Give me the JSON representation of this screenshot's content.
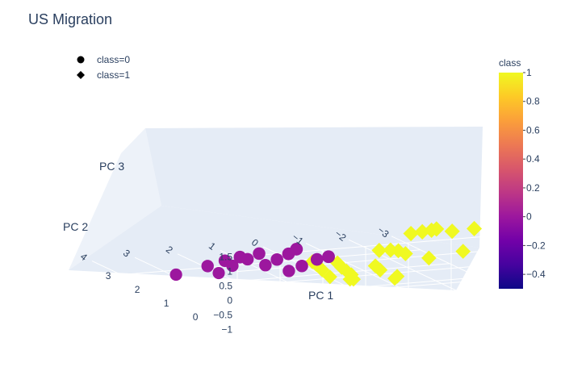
{
  "chart_data": {
    "type": "scatter3d",
    "title": "US Migration",
    "axes": {
      "x": {
        "title": "PC 1",
        "ticks": [
          "4",
          "3",
          "2",
          "1",
          "0",
          "−1",
          "−2",
          "−3"
        ],
        "range": [
          -3,
          4
        ]
      },
      "y": {
        "title": "PC 2",
        "ticks": [
          "0",
          "1",
          "2",
          "3"
        ],
        "range": [
          -1,
          4
        ]
      },
      "z": {
        "title": "PC 3",
        "ticks": [
          "−1",
          "−0.5",
          "0",
          "0.5",
          "1",
          "1.5"
        ],
        "range": [
          -1,
          1.5
        ]
      }
    },
    "legend": {
      "placement": "top-left",
      "entries": [
        {
          "label": "class=0",
          "symbol": "circle"
        },
        {
          "label": "class=1",
          "symbol": "diamond"
        }
      ]
    },
    "colorbar": {
      "title": "class",
      "ticks": [
        "1",
        "0.8",
        "0.6",
        "0.4",
        "0.2",
        "0",
        "−0.2",
        "−0.4"
      ],
      "range": [
        -0.5,
        1
      ],
      "colors": [
        "#0d0887",
        "#46039f",
        "#7201a8",
        "#9c179e",
        "#bd3786",
        "#d8576b",
        "#ed7953",
        "#fb9f3a",
        "#fdca26",
        "#f0f921"
      ]
    },
    "series": [
      {
        "name": "class=0",
        "symbol": "circle",
        "color": "#9c179e",
        "points": [
          [
            3.7,
            1.55,
            -0.35
          ],
          [
            3.2,
            1.2,
            0.05
          ],
          [
            3.0,
            0.9,
            0.35
          ],
          [
            2.85,
            0.6,
            0.6
          ],
          [
            2.6,
            1.7,
            -0.5
          ],
          [
            2.45,
            1.45,
            -0.15
          ],
          [
            2.3,
            1.15,
            0.2
          ],
          [
            2.2,
            0.9,
            0.5
          ],
          [
            1.95,
            1.05,
            0.0
          ],
          [
            1.85,
            0.8,
            0.3
          ],
          [
            1.75,
            0.55,
            0.6
          ],
          [
            1.7,
            0.35,
            0.85
          ],
          [
            1.3,
            1.2,
            -0.35
          ],
          [
            1.2,
            0.9,
            -0.05
          ],
          [
            1.05,
            0.6,
            0.3
          ],
          [
            0.95,
            0.35,
            0.5
          ]
        ]
      },
      {
        "name": "class=1",
        "symbol": "diamond",
        "color": "#f0f921",
        "points": [
          [
            0.75,
            1.2,
            -0.1
          ],
          [
            0.55,
            1.35,
            -0.3
          ],
          [
            0.35,
            1.45,
            -0.55
          ],
          [
            0.0,
            1.7,
            -0.95
          ],
          [
            0.3,
            1.0,
            -0.1
          ],
          [
            0.1,
            1.15,
            -0.35
          ],
          [
            -0.15,
            1.35,
            -0.6
          ],
          [
            -0.4,
            1.55,
            -0.85
          ],
          [
            -0.3,
            1.45,
            -0.95
          ],
          [
            -0.55,
            1.7,
            -1.1
          ],
          [
            -0.45,
            0.8,
            -0.2
          ],
          [
            -0.8,
            1.15,
            -0.55
          ],
          [
            -1.3,
            1.3,
            -0.9
          ],
          [
            -1.65,
            1.9,
            -1.3
          ],
          [
            -0.2,
            0.3,
            0.6
          ],
          [
            -0.5,
            0.35,
            0.55
          ],
          [
            -0.75,
            0.45,
            0.45
          ],
          [
            -0.95,
            0.5,
            0.3
          ],
          [
            -1.6,
            0.65,
            0.0
          ],
          [
            -2.5,
            0.8,
            0.05
          ],
          [
            -0.5,
            -0.35,
            1.45
          ],
          [
            -0.8,
            -0.3,
            1.45
          ],
          [
            -1.05,
            -0.25,
            1.45
          ],
          [
            -1.2,
            -0.2,
            1.45
          ],
          [
            -1.6,
            -0.15,
            1.3
          ],
          [
            -2.15,
            -0.1,
            1.3
          ],
          [
            -3.05,
            -0.05,
            1.3
          ]
        ]
      }
    ]
  }
}
